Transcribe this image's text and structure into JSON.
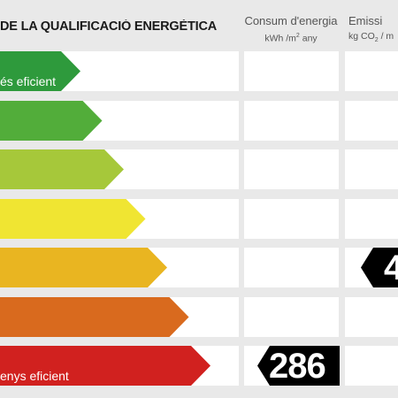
{
  "header": {
    "title": "DE LA QUALIFICACIÓ ENERGÈTICA",
    "consumption": {
      "line1": "Consum d'energia",
      "unit": "kWh /m",
      "sup": "2",
      "per": " any"
    },
    "emissions": {
      "line1": "Emissi",
      "unit": "kg CO",
      "sub": "2",
      "per": " / m"
    }
  },
  "bars": [
    {
      "label": "és eficient",
      "color": "#2e9a3c"
    },
    {
      "label": "",
      "color": "#52ad3a"
    },
    {
      "label": "",
      "color": "#a6c83a"
    },
    {
      "label": "",
      "color": "#f0e532"
    },
    {
      "label": "",
      "color": "#e9b521"
    },
    {
      "label": "",
      "color": "#d96a1e"
    },
    {
      "label": "enys eficient",
      "color": "#d1211f"
    }
  ],
  "consumption_marker": {
    "value": "286",
    "color": "#000000"
  },
  "emissions_marker": {
    "value": "4",
    "color": "#000000"
  }
}
